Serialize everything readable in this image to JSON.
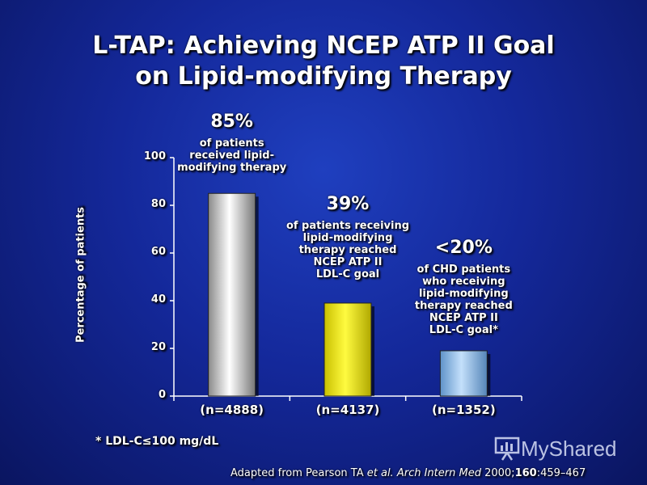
{
  "title_line1": "L-TAP: Achieving NCEP ATP II Goal",
  "title_line2": "on Lipid-modifying Therapy",
  "footnote": "* LDL-C≤100 mg/dL",
  "source_prefix": "Adapted from Pearson TA ",
  "source_etal": "et al.",
  "source_journal": " Arch Intern Med",
  "source_year": " 2000;",
  "source_vol": "160",
  "source_pages": ":459–467",
  "logo_text": "MyShared",
  "chart_data": {
    "type": "bar",
    "ylabel": "Percentage of patients",
    "ylim": [
      0,
      100
    ],
    "yticks": [
      0,
      20,
      40,
      60,
      80,
      100
    ],
    "categories": [
      "(n=4888)",
      "(n=4137)",
      "(n=1352)"
    ],
    "values": [
      85,
      39,
      19
    ],
    "bar_colors": [
      "#e8e8e8",
      "#f2ee10",
      "#9cc8ee"
    ],
    "value_labels": [
      "85%",
      "39%",
      "<20%"
    ],
    "annotations": [
      [
        "of patients",
        "received lipid-",
        "modifying therapy"
      ],
      [
        "of patients receiving",
        "lipid-modifying",
        "therapy reached",
        "NCEP ATP II",
        "LDL-C goal"
      ],
      [
        "of CHD patients",
        "who receiving",
        "lipid-modifying",
        "therapy reached",
        "NCEP ATP II",
        "LDL-C goal*"
      ]
    ]
  }
}
